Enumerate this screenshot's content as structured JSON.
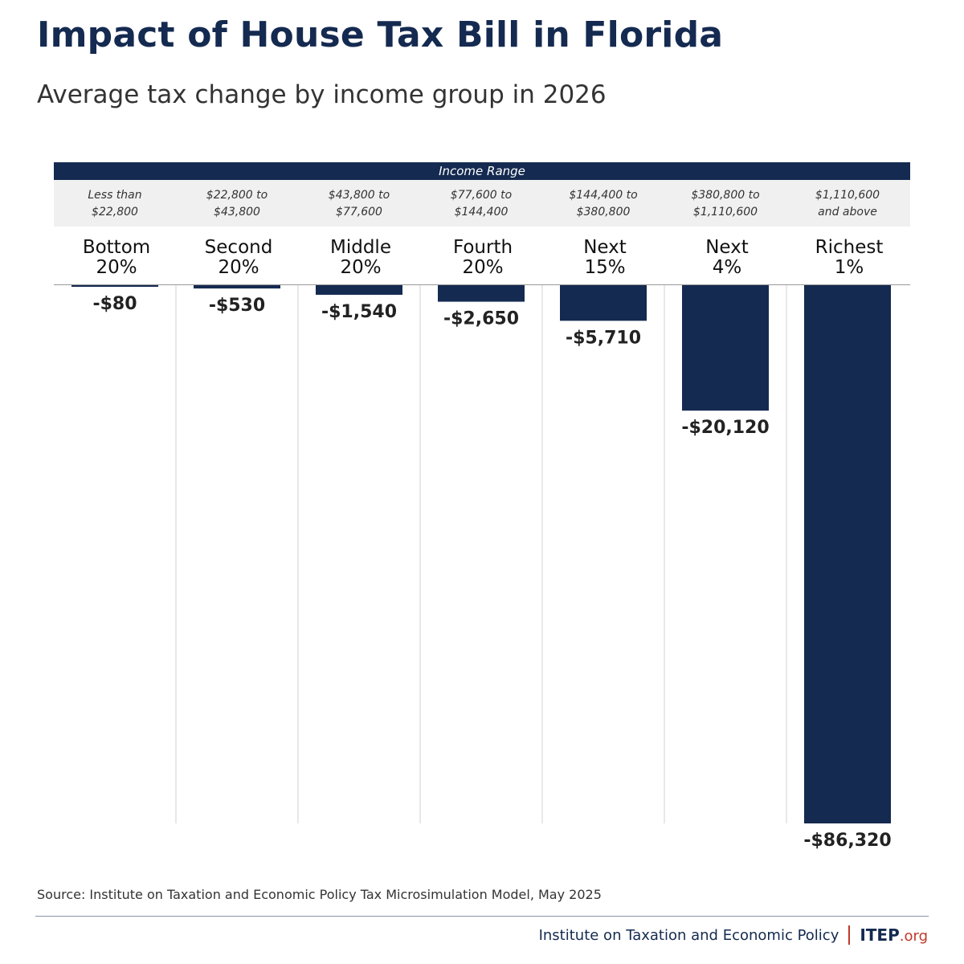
{
  "title": "Impact of House Tax Bill in Florida",
  "subtitle": "Average tax change by income group in 2026",
  "range_header": "Income Range",
  "income_ranges": [
    [
      "Less than",
      "$22,800"
    ],
    [
      "$22,800 to",
      "$43,800"
    ],
    [
      "$43,800 to",
      "$77,600"
    ],
    [
      "$77,600 to",
      "$144,400"
    ],
    [
      "$144,400 to",
      "$380,800"
    ],
    [
      "$380,800 to",
      "$1,110,600"
    ],
    [
      "$1,110,600",
      "and above"
    ]
  ],
  "groups": [
    [
      "Bottom",
      "20%"
    ],
    [
      "Second",
      "20%"
    ],
    [
      "Middle",
      "20%"
    ],
    [
      "Fourth",
      "20%"
    ],
    [
      "Next",
      "15%"
    ],
    [
      "Next",
      "4%"
    ],
    [
      "Richest",
      "1%"
    ]
  ],
  "chart_data": {
    "type": "bar",
    "categories": [
      "Bottom 20%",
      "Second 20%",
      "Middle 20%",
      "Fourth 20%",
      "Next 15%",
      "Next 4%",
      "Richest 1%"
    ],
    "values": [
      -80,
      -530,
      -1540,
      -2650,
      -5710,
      -20120,
      -86320
    ],
    "value_labels": [
      "-$80",
      "-$530",
      "-$1,540",
      "-$2,650",
      "-$5,710",
      "-$20,120",
      "-$86,320"
    ],
    "ylim": [
      -86320,
      0
    ],
    "bar_color": "#142a50",
    "grid": false
  },
  "source": "Source: Institute on Taxation and Economic Policy Tax Microsimulation Model, May 2025",
  "footer": {
    "org_name": "Institute on Taxation and Economic Policy",
    "logo_main": "ITEP",
    "logo_suffix": ".org"
  },
  "colors": {
    "navy": "#142a50",
    "accent_red": "#c0392b"
  }
}
